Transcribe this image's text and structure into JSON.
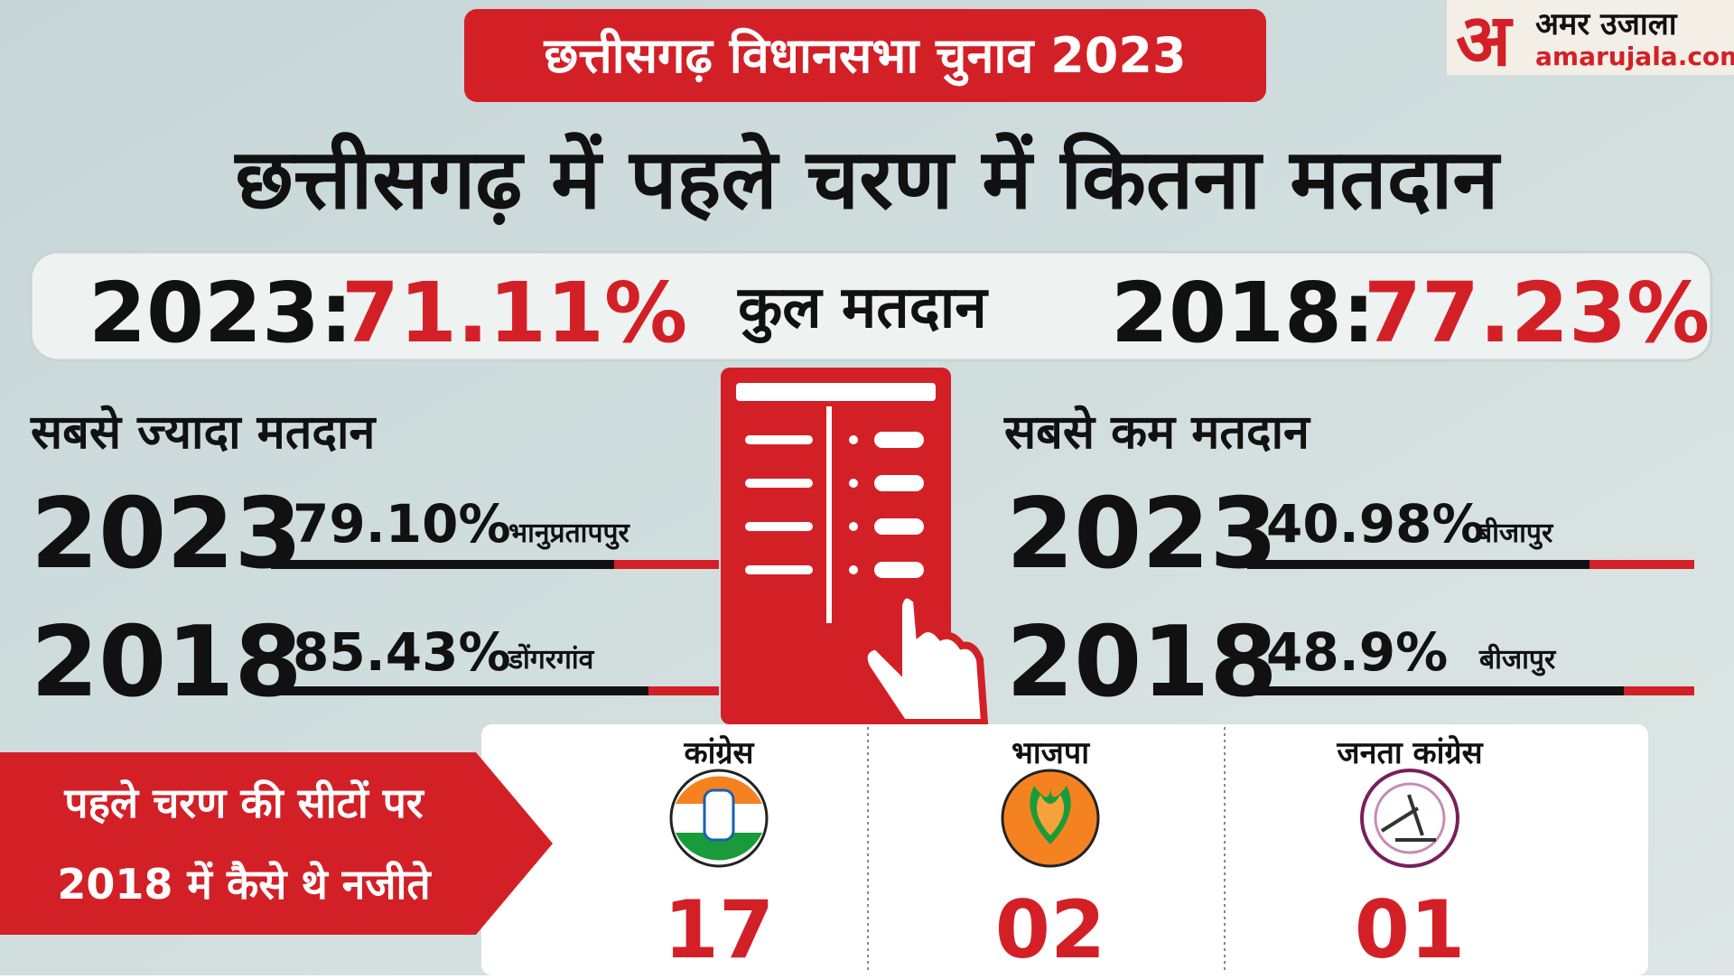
{
  "header": {
    "tag": "छत्तीसगढ़ विधानसभा चुनाव 2023",
    "title": "छत्तीसगढ़ में पहले चरण में कितना मतदान"
  },
  "logo": {
    "mark": "अ",
    "name": "अमर उजाला",
    "site": "amarujala.com"
  },
  "total": {
    "label": "कुल मतदान",
    "left": {
      "year": "2023:",
      "value": "71.11%"
    },
    "right": {
      "year": "2018:",
      "value": "77.23%"
    }
  },
  "highest": {
    "heading": "सबसे ज्यादा मतदान",
    "rows": [
      {
        "year": "2023",
        "value": "79.10%",
        "place": "भानुप्रतापपुर"
      },
      {
        "year": "2018",
        "value": "85.43%",
        "place": "डोंगरगांव"
      }
    ]
  },
  "lowest": {
    "heading": "सबसे कम मतदान",
    "rows": [
      {
        "year": "2023",
        "value": "40.98%",
        "place": "बीजापुर"
      },
      {
        "year": "2018",
        "value": "48.9%",
        "place": "बीजापुर"
      }
    ]
  },
  "results": {
    "caption": [
      "पहले चरण की सीटों पर",
      "2018 में कैसे थे नजीते"
    ],
    "parties": [
      {
        "name": "कांग्रेस",
        "seats": "17"
      },
      {
        "name": "भाजपा",
        "seats": "02"
      },
      {
        "name": "जनता कांग्रेस",
        "seats": "01"
      }
    ]
  }
}
